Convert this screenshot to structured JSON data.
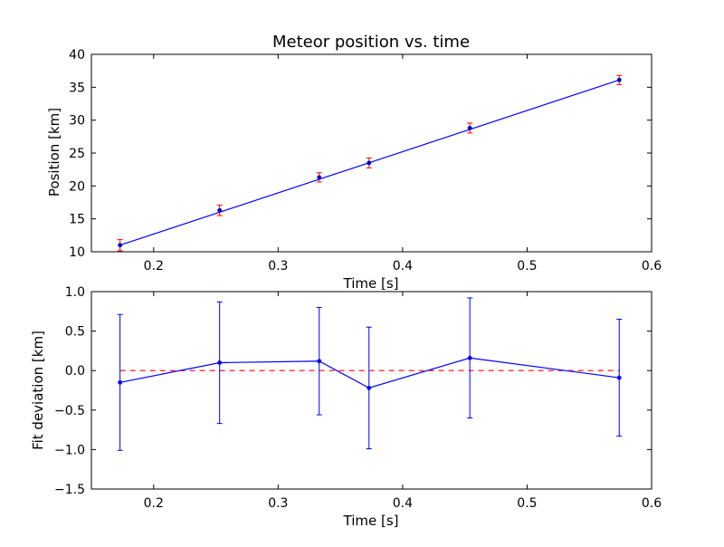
{
  "chart_data": [
    {
      "type": "line",
      "title": "Meteor position vs. time",
      "xlabel": "Time [s]",
      "ylabel": "Position [km]",
      "xlim": [
        0.15,
        0.6
      ],
      "ylim": [
        10,
        40
      ],
      "xticks": [
        0.2,
        0.3,
        0.4,
        0.5,
        0.6
      ],
      "xtick_labels": [
        "0.2",
        "0.3",
        "0.4",
        "0.5",
        "0.6"
      ],
      "yticks": [
        10,
        15,
        20,
        25,
        30,
        35,
        40
      ],
      "ytick_labels": [
        "10",
        "15",
        "20",
        "25",
        "30",
        "35",
        "40"
      ],
      "grid": false,
      "series": [
        {
          "kind": "fit-line",
          "color": "#0000ff",
          "x": [
            0.173,
            0.574
          ],
          "y": [
            11.0,
            36.1
          ]
        },
        {
          "kind": "errorbar",
          "color": "#ff0000",
          "marker_color": "#0000cc",
          "x": [
            0.173,
            0.253,
            0.333,
            0.373,
            0.454,
            0.574
          ],
          "y": [
            11.0,
            16.3,
            21.3,
            23.5,
            28.8,
            36.1
          ],
          "yerr": [
            0.85,
            0.8,
            0.7,
            0.75,
            0.75,
            0.7
          ]
        }
      ]
    },
    {
      "type": "line",
      "title": "",
      "xlabel": "Time [s]",
      "ylabel": "Fit deviation [km]",
      "xlim": [
        0.15,
        0.6
      ],
      "ylim": [
        -1.5,
        1.0
      ],
      "xticks": [
        0.2,
        0.3,
        0.4,
        0.5,
        0.6
      ],
      "xtick_labels": [
        "0.2",
        "0.3",
        "0.4",
        "0.5",
        "0.6"
      ],
      "yticks": [
        -1.5,
        -1.0,
        -0.5,
        0.0,
        0.5,
        1.0
      ],
      "ytick_labels": [
        "−1.5",
        "−1.0",
        "−0.5",
        "0.0",
        "0.5",
        "1.0"
      ],
      "grid": false,
      "series": [
        {
          "kind": "reference-line",
          "color": "#ff0000",
          "style": "dashed",
          "x": [
            0.173,
            0.574
          ],
          "y": [
            0.0,
            0.0
          ]
        },
        {
          "kind": "errorbar-line",
          "color": "#0000ff",
          "x": [
            0.173,
            0.253,
            0.333,
            0.373,
            0.454,
            0.574
          ],
          "y": [
            -0.15,
            0.1,
            0.12,
            -0.22,
            0.16,
            -0.09
          ],
          "yerr": [
            0.86,
            0.77,
            0.68,
            0.77,
            0.76,
            0.74
          ]
        }
      ]
    }
  ]
}
